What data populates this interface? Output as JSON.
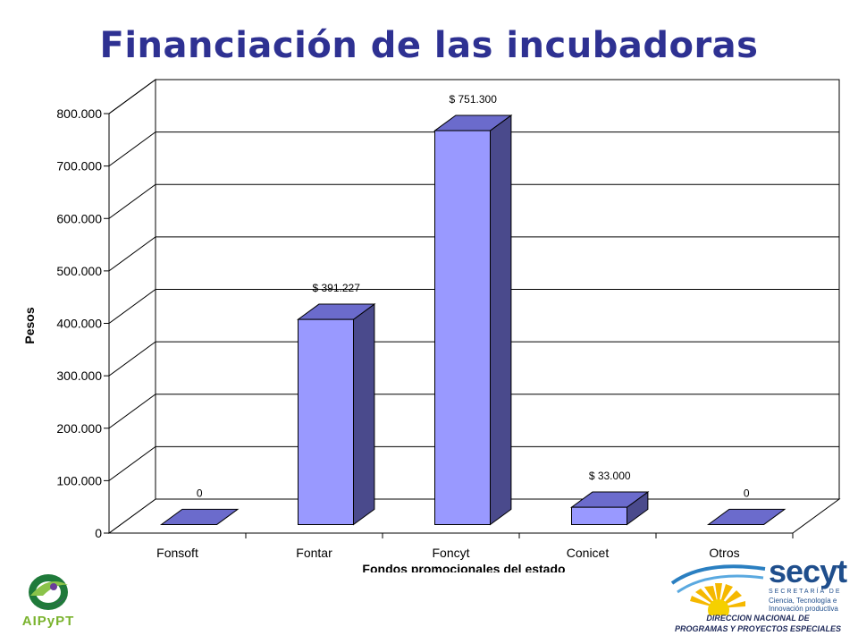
{
  "title": "Financiación de las incubadoras",
  "colors": {
    "title": "#2e3192",
    "bar_front": "#9999ff",
    "bar_side": "#4a4a8c",
    "bar_top": "#6b6bcc"
  },
  "chart_data": {
    "type": "bar",
    "categories": [
      "Fonsoft",
      "Fontar",
      "Foncyt",
      "Conicet",
      "Otros"
    ],
    "values": [
      0,
      391227,
      751300,
      33000,
      0
    ],
    "data_labels": [
      "0",
      "$ 391.227",
      "$ 751.300",
      "$ 33.000",
      "0"
    ],
    "ylabel": "Pesos",
    "xlabel": "Fondos promocionales del estado",
    "ylim": [
      0,
      800000
    ],
    "yticks": [
      0,
      100000,
      200000,
      300000,
      400000,
      500000,
      600000,
      700000,
      800000
    ],
    "ytick_labels": [
      "0",
      "100.000",
      "200.000",
      "300.000",
      "400.000",
      "500.000",
      "600.000",
      "700.000",
      "800.000"
    ],
    "grid": true,
    "style": "3d"
  },
  "logos": {
    "left_text": "AIPyPT",
    "right": {
      "name": "secyt",
      "secretaria": "SECRETARÍA DE",
      "subtitle": "Ciencia, Tecnología e Innovación productiva",
      "dir_line1": "DIRECCION NACIONAL DE",
      "dir_line2": "PROGRAMAS Y PROYECTOS ESPECIALES"
    }
  }
}
